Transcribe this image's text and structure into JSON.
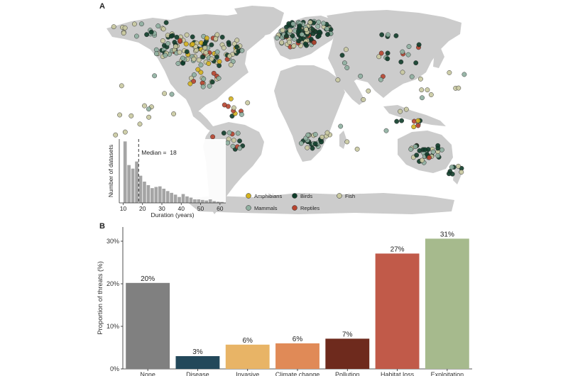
{
  "panel_a": {
    "letter": "A",
    "legend": [
      {
        "name": "Amphibians",
        "color": "#d4b21f"
      },
      {
        "name": "Birds",
        "color": "#0f3d2a"
      },
      {
        "name": "Fish",
        "color": "#c9c9a0"
      },
      {
        "name": "Mammals",
        "color": "#8fb0a0"
      },
      {
        "name": "Reptiles",
        "color": "#b8442f"
      }
    ]
  },
  "panel_b": {
    "letter": "B"
  },
  "chart_data": [
    {
      "type": "bar",
      "xlabel": "Duration (years)",
      "ylabel": "Number of datasets",
      "xlim": [
        8,
        63
      ],
      "x_ticks": [
        "10",
        "20",
        "30",
        "40",
        "50",
        "60"
      ],
      "x_tick_values": [
        10,
        20,
        30,
        40,
        50,
        60
      ],
      "median_value": 18,
      "median_label": "Median =",
      "median_text": "18",
      "bins": [
        {
          "start": 10,
          "end": 12,
          "value": 520
        },
        {
          "start": 12,
          "end": 14,
          "value": 320
        },
        {
          "start": 14,
          "end": 16,
          "value": 290
        },
        {
          "start": 16,
          "end": 18,
          "value": 350
        },
        {
          "start": 18,
          "end": 20,
          "value": 230
        },
        {
          "start": 20,
          "end": 22,
          "value": 180
        },
        {
          "start": 22,
          "end": 24,
          "value": 150
        },
        {
          "start": 24,
          "end": 26,
          "value": 125
        },
        {
          "start": 26,
          "end": 28,
          "value": 135
        },
        {
          "start": 28,
          "end": 30,
          "value": 140
        },
        {
          "start": 30,
          "end": 32,
          "value": 120
        },
        {
          "start": 32,
          "end": 34,
          "value": 100
        },
        {
          "start": 34,
          "end": 36,
          "value": 85
        },
        {
          "start": 36,
          "end": 38,
          "value": 70
        },
        {
          "start": 38,
          "end": 40,
          "value": 50
        },
        {
          "start": 40,
          "end": 42,
          "value": 75
        },
        {
          "start": 42,
          "end": 44,
          "value": 55
        },
        {
          "start": 44,
          "end": 46,
          "value": 45
        },
        {
          "start": 46,
          "end": 48,
          "value": 30
        },
        {
          "start": 48,
          "end": 50,
          "value": 30
        },
        {
          "start": 50,
          "end": 52,
          "value": 25
        },
        {
          "start": 52,
          "end": 54,
          "value": 20
        },
        {
          "start": 54,
          "end": 56,
          "value": 30
        },
        {
          "start": 56,
          "end": 58,
          "value": 15
        },
        {
          "start": 58,
          "end": 60,
          "value": 10
        },
        {
          "start": 60,
          "end": 62,
          "value": 8
        }
      ],
      "ylim": [
        0,
        540
      ]
    },
    {
      "type": "bar",
      "categories": [
        "None",
        "Disease",
        "Invasive",
        "Climate change",
        "Pollution",
        "Habitat loss",
        "Exploitation"
      ],
      "values": [
        20.2,
        3.0,
        5.7,
        6.0,
        7.1,
        27.1,
        30.6
      ],
      "data_labels": [
        "20%",
        "3%",
        "6%",
        "6%",
        "7%",
        "27%",
        "31%"
      ],
      "colors": [
        "#808080",
        "#23485a",
        "#e8b466",
        "#e08a57",
        "#6e2a1d",
        "#c15a49",
        "#a6ba8d"
      ],
      "ylabel": "Proportion of threats (%)",
      "ylim": [
        0,
        33
      ],
      "y_ticks": [
        "0%",
        "10%",
        "20%",
        "30%"
      ],
      "y_tick_values": [
        0,
        10,
        20,
        30
      ]
    }
  ]
}
